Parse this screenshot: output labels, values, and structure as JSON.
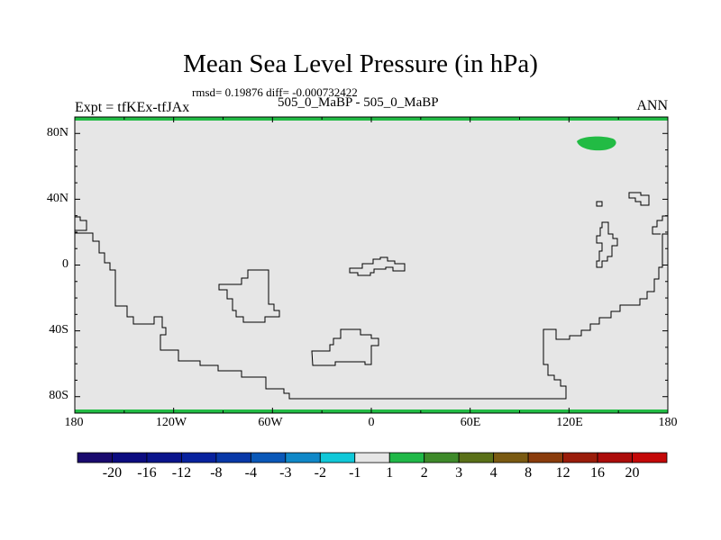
{
  "title": "Mean Sea Level Pressure (in hPa)",
  "stats": "rmsd= 0.19876 diff= -0.000732422",
  "experiment": "Expt = tfKEx-tfJAx",
  "case_label": "505_0_MaBP - 505_0_MaBP",
  "season": "ANN",
  "colors": {
    "background_field": "#e6e6e6",
    "positive_contour": "#22bb44",
    "coastline": "#000000"
  },
  "axes": {
    "x_ticks": [
      "180",
      "120W",
      "60W",
      "0",
      "60E",
      "120E",
      "180"
    ],
    "y_ticks": [
      "80N",
      "40N",
      "0",
      "40S",
      "80S"
    ]
  },
  "colorbar": {
    "labels": [
      "-20",
      "-16",
      "-12",
      "-8",
      "-4",
      "-3",
      "-2",
      "-1",
      "1",
      "2",
      "3",
      "4",
      "8",
      "12",
      "16",
      "20"
    ],
    "colors": [
      "#1a0a6e",
      "#0c0c80",
      "#0a148c",
      "#08229e",
      "#0838a8",
      "#0a58b8",
      "#1088c8",
      "#10c8d8",
      "#e6e6e6",
      "#20b848",
      "#3e8a2a",
      "#5a7018",
      "#7a5a12",
      "#8a3c0c",
      "#9a1c0a",
      "#ac0c0a",
      "#c40808"
    ]
  }
}
